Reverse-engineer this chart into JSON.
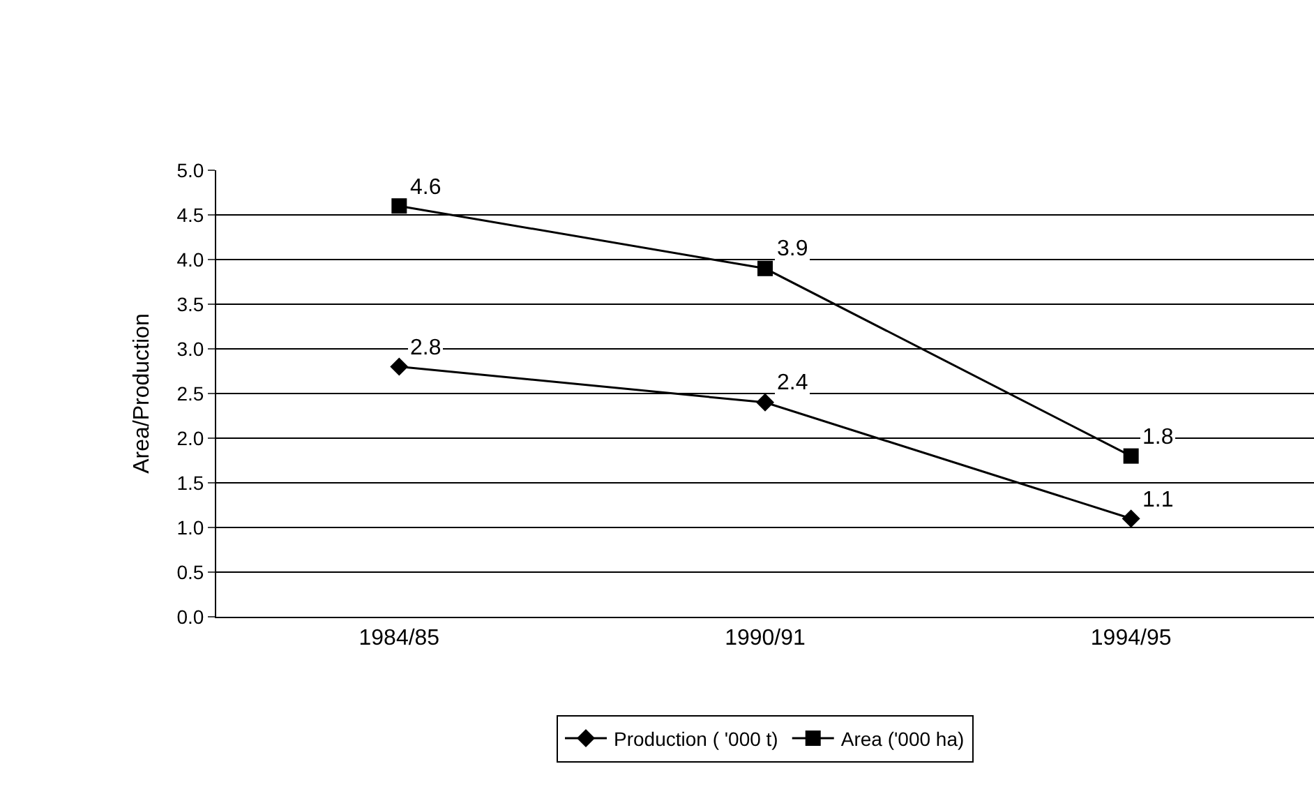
{
  "chart_data": {
    "type": "line",
    "ylabel": "Area/Production",
    "categories": [
      "1984/85",
      "1990/91",
      "1994/95"
    ],
    "series": [
      {
        "name": "Production ( '000 t)",
        "color": "#000000",
        "marker": "diamond",
        "values": [
          2.8,
          2.4,
          1.1
        ]
      },
      {
        "name": "Area ('000 ha)",
        "color": "#000000",
        "marker": "square",
        "values": [
          4.6,
          3.9,
          1.8
        ]
      }
    ],
    "ylim": [
      0,
      5
    ],
    "yticks": [
      {
        "value": 0,
        "label": "0.0"
      },
      {
        "value": 0.5,
        "label": "0.5"
      },
      {
        "value": 1,
        "label": "1.0"
      },
      {
        "value": 1.5,
        "label": "1.5"
      },
      {
        "value": 2,
        "label": "2.0"
      },
      {
        "value": 2.5,
        "label": "2.5"
      },
      {
        "value": 3,
        "label": "3.0"
      },
      {
        "value": 3.5,
        "label": "3.5"
      },
      {
        "value": 4,
        "label": "4.0"
      },
      {
        "value": 4.5,
        "label": "4.5"
      },
      {
        "value": 5,
        "label": "5.0"
      }
    ],
    "grid": "y",
    "legend": "bottom",
    "data_labels": true,
    "line_style": "solid"
  }
}
